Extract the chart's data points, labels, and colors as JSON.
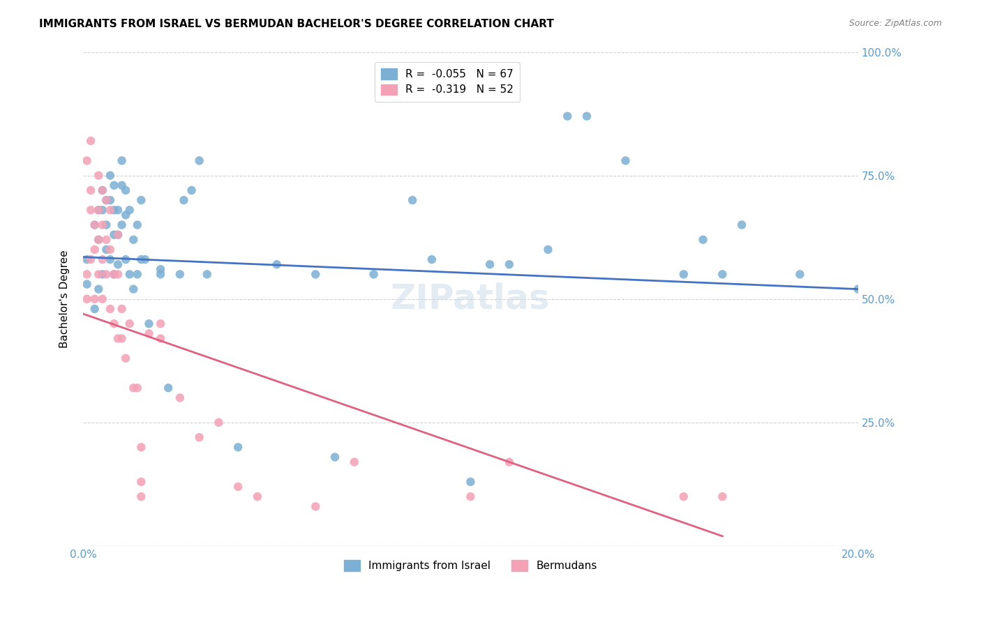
{
  "title": "IMMIGRANTS FROM ISRAEL VS BERMUDAN BACHELOR'S DEGREE CORRELATION CHART",
  "source": "Source: ZipAtlas.com",
  "ylabel": "Bachelor's Degree",
  "watermark": "ZIPatlas",
  "legend_top": [
    {
      "label": "R =  -0.055   N = 67",
      "color": "#a8c4e0"
    },
    {
      "label": "R =  -0.319   N = 52",
      "color": "#f4a0b0"
    }
  ],
  "legend_bottom_labels": [
    "Immigrants from Israel",
    "Bermudans"
  ],
  "xmin": 0.0,
  "xmax": 0.2,
  "ymin": 0.0,
  "ymax": 1.0,
  "yticks": [
    0.0,
    0.25,
    0.5,
    0.75,
    1.0
  ],
  "ytick_labels": [
    "",
    "25.0%",
    "50.0%",
    "75.0%",
    "100.0%"
  ],
  "xticks": [
    0.0,
    0.05,
    0.1,
    0.15,
    0.2
  ],
  "xtick_labels": [
    "0.0%",
    "",
    "",
    "",
    "20.0%"
  ],
  "blue_scatter_x": [
    0.001,
    0.001,
    0.003,
    0.003,
    0.004,
    0.004,
    0.004,
    0.005,
    0.005,
    0.005,
    0.006,
    0.006,
    0.006,
    0.007,
    0.007,
    0.007,
    0.008,
    0.008,
    0.008,
    0.008,
    0.009,
    0.009,
    0.009,
    0.01,
    0.01,
    0.01,
    0.011,
    0.011,
    0.011,
    0.012,
    0.012,
    0.013,
    0.013,
    0.014,
    0.014,
    0.015,
    0.015,
    0.016,
    0.017,
    0.02,
    0.02,
    0.022,
    0.025,
    0.026,
    0.028,
    0.03,
    0.032,
    0.04,
    0.05,
    0.06,
    0.065,
    0.075,
    0.085,
    0.09,
    0.1,
    0.105,
    0.11,
    0.12,
    0.125,
    0.13,
    0.14,
    0.155,
    0.16,
    0.165,
    0.17,
    0.185,
    0.2
  ],
  "blue_scatter_y": [
    0.58,
    0.53,
    0.65,
    0.48,
    0.68,
    0.62,
    0.52,
    0.72,
    0.68,
    0.55,
    0.7,
    0.65,
    0.6,
    0.75,
    0.7,
    0.58,
    0.73,
    0.68,
    0.63,
    0.55,
    0.68,
    0.63,
    0.57,
    0.78,
    0.73,
    0.65,
    0.72,
    0.67,
    0.58,
    0.68,
    0.55,
    0.62,
    0.52,
    0.65,
    0.55,
    0.7,
    0.58,
    0.58,
    0.45,
    0.56,
    0.55,
    0.32,
    0.55,
    0.7,
    0.72,
    0.78,
    0.55,
    0.2,
    0.57,
    0.55,
    0.18,
    0.55,
    0.7,
    0.58,
    0.13,
    0.57,
    0.57,
    0.6,
    0.87,
    0.87,
    0.78,
    0.55,
    0.62,
    0.55,
    0.65,
    0.55,
    0.52
  ],
  "pink_scatter_x": [
    0.001,
    0.001,
    0.001,
    0.002,
    0.002,
    0.002,
    0.002,
    0.003,
    0.003,
    0.003,
    0.004,
    0.004,
    0.004,
    0.004,
    0.005,
    0.005,
    0.005,
    0.005,
    0.006,
    0.006,
    0.006,
    0.007,
    0.007,
    0.007,
    0.008,
    0.008,
    0.009,
    0.009,
    0.009,
    0.01,
    0.01,
    0.011,
    0.012,
    0.013,
    0.014,
    0.015,
    0.015,
    0.015,
    0.017,
    0.02,
    0.02,
    0.025,
    0.03,
    0.035,
    0.04,
    0.045,
    0.06,
    0.07,
    0.1,
    0.11,
    0.155,
    0.165
  ],
  "pink_scatter_y": [
    0.78,
    0.55,
    0.5,
    0.82,
    0.72,
    0.68,
    0.58,
    0.65,
    0.6,
    0.5,
    0.75,
    0.68,
    0.62,
    0.55,
    0.72,
    0.65,
    0.58,
    0.5,
    0.7,
    0.62,
    0.55,
    0.68,
    0.6,
    0.48,
    0.55,
    0.45,
    0.63,
    0.55,
    0.42,
    0.48,
    0.42,
    0.38,
    0.45,
    0.32,
    0.32,
    0.2,
    0.13,
    0.1,
    0.43,
    0.45,
    0.42,
    0.3,
    0.22,
    0.25,
    0.12,
    0.1,
    0.08,
    0.17,
    0.1,
    0.17,
    0.1,
    0.1
  ],
  "blue_line_x": [
    0.0,
    0.2
  ],
  "blue_line_y": [
    0.585,
    0.52
  ],
  "pink_line_x": [
    0.0,
    0.165
  ],
  "pink_line_y": [
    0.47,
    0.02
  ],
  "blue_color": "#7bafd4",
  "pink_color": "#f4a0b5",
  "blue_line_color": "#4472c4",
  "pink_line_color": "#e06080",
  "axis_color": "#5b9bd5",
  "grid_color": "#c0c0c0",
  "background_color": "#ffffff",
  "title_fontsize": 11,
  "axis_label_fontsize": 11,
  "tick_fontsize": 11,
  "watermark_fontsize": 36,
  "watermark_color": "#c8d8e8",
  "watermark_alpha": 0.5
}
